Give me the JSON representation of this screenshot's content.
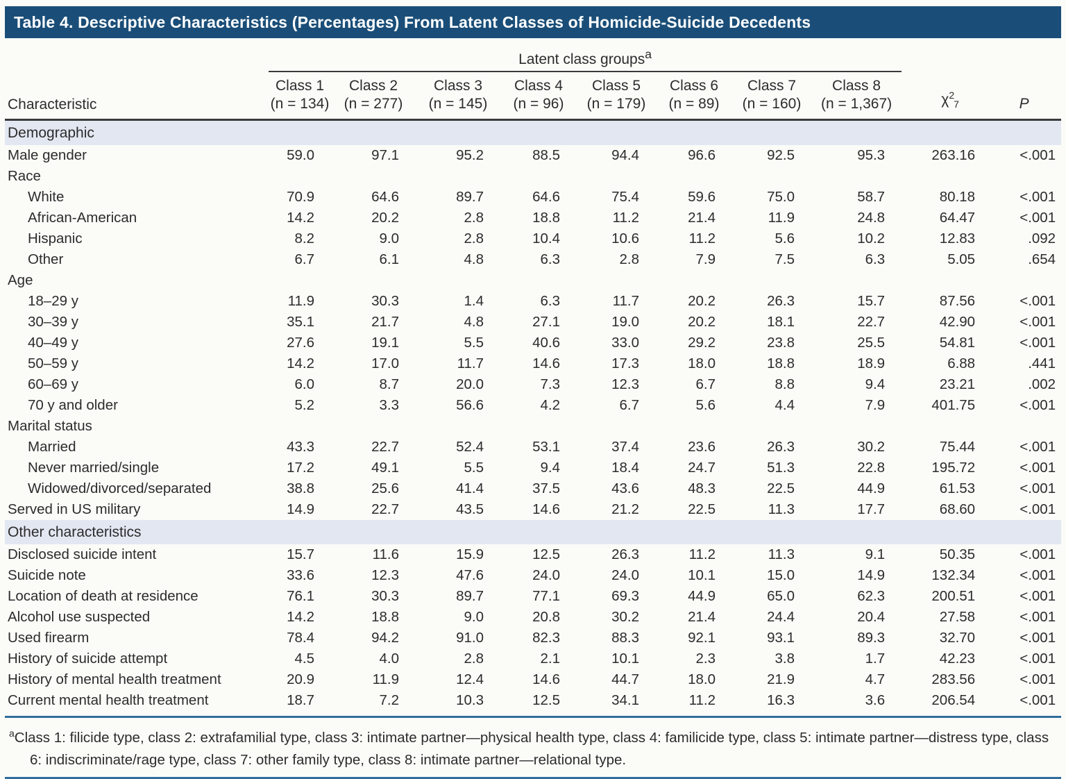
{
  "title": "Table 4. Descriptive Characteristics (Percentages) From Latent Classes of Homicide-Suicide Decedents",
  "colors": {
    "title_bar": "#1a4e78",
    "section_band": "#e3e7f2",
    "rule_blue": "#2f6d9d",
    "rule_dark": "#3a3a3a"
  },
  "table": {
    "group_header": {
      "label": "Latent class groups",
      "marker": "a"
    },
    "char_header": "Characteristic",
    "classes": [
      {
        "name": "Class 1",
        "n": "(n = 134)"
      },
      {
        "name": "Class 2",
        "n": "(n = 277)"
      },
      {
        "name": "Class 3",
        "n": "(n = 145)"
      },
      {
        "name": "Class 4",
        "n": "(n = 96)"
      },
      {
        "name": "Class 5",
        "n": "(n = 179)"
      },
      {
        "name": "Class 6",
        "n": "(n = 89)"
      },
      {
        "name": "Class 7",
        "n": "(n = 160)"
      },
      {
        "name": "Class 8",
        "n": "(n = 1,367)"
      }
    ],
    "chi_header": {
      "base": "χ",
      "sup": "2",
      "sub": "7"
    },
    "p_header": "P",
    "rows": [
      {
        "type": "section",
        "label": "Demographic"
      },
      {
        "type": "data",
        "label": "Male gender",
        "indent": 0,
        "values": [
          "59.0",
          "97.1",
          "95.2",
          "88.5",
          "94.4",
          "96.6",
          "92.5",
          "95.3"
        ],
        "chi": "263.16",
        "p": "<.001"
      },
      {
        "type": "data",
        "label": "Race",
        "indent": 0,
        "values": [
          "",
          "",
          "",
          "",
          "",
          "",
          "",
          ""
        ],
        "chi": "",
        "p": ""
      },
      {
        "type": "data",
        "label": "White",
        "indent": 1,
        "values": [
          "70.9",
          "64.6",
          "89.7",
          "64.6",
          "75.4",
          "59.6",
          "75.0",
          "58.7"
        ],
        "chi": "80.18",
        "p": "<.001"
      },
      {
        "type": "data",
        "label": "African-American",
        "indent": 1,
        "values": [
          "14.2",
          "20.2",
          "2.8",
          "18.8",
          "11.2",
          "21.4",
          "11.9",
          "24.8"
        ],
        "chi": "64.47",
        "p": "<.001"
      },
      {
        "type": "data",
        "label": "Hispanic",
        "indent": 1,
        "values": [
          "8.2",
          "9.0",
          "2.8",
          "10.4",
          "10.6",
          "11.2",
          "5.6",
          "10.2"
        ],
        "chi": "12.83",
        "p": ".092"
      },
      {
        "type": "data",
        "label": "Other",
        "indent": 1,
        "values": [
          "6.7",
          "6.1",
          "4.8",
          "6.3",
          "2.8",
          "7.9",
          "7.5",
          "6.3"
        ],
        "chi": "5.05",
        "p": ".654"
      },
      {
        "type": "data",
        "label": "Age",
        "indent": 0,
        "values": [
          "",
          "",
          "",
          "",
          "",
          "",
          "",
          ""
        ],
        "chi": "",
        "p": ""
      },
      {
        "type": "data",
        "label": "18–29 y",
        "indent": 1,
        "values": [
          "11.9",
          "30.3",
          "1.4",
          "6.3",
          "11.7",
          "20.2",
          "26.3",
          "15.7"
        ],
        "chi": "87.56",
        "p": "<.001"
      },
      {
        "type": "data",
        "label": "30–39 y",
        "indent": 1,
        "values": [
          "35.1",
          "21.7",
          "4.8",
          "27.1",
          "19.0",
          "20.2",
          "18.1",
          "22.7"
        ],
        "chi": "42.90",
        "p": "<.001"
      },
      {
        "type": "data",
        "label": "40–49 y",
        "indent": 1,
        "values": [
          "27.6",
          "19.1",
          "5.5",
          "40.6",
          "33.0",
          "29.2",
          "23.8",
          "25.5"
        ],
        "chi": "54.81",
        "p": "<.001"
      },
      {
        "type": "data",
        "label": "50–59 y",
        "indent": 1,
        "values": [
          "14.2",
          "17.0",
          "11.7",
          "14.6",
          "17.3",
          "18.0",
          "18.8",
          "18.9"
        ],
        "chi": "6.88",
        "p": ".441"
      },
      {
        "type": "data",
        "label": "60–69 y",
        "indent": 1,
        "values": [
          "6.0",
          "8.7",
          "20.0",
          "7.3",
          "12.3",
          "6.7",
          "8.8",
          "9.4"
        ],
        "chi": "23.21",
        "p": ".002"
      },
      {
        "type": "data",
        "label": "70 y and older",
        "indent": 1,
        "values": [
          "5.2",
          "3.3",
          "56.6",
          "4.2",
          "6.7",
          "5.6",
          "4.4",
          "7.9"
        ],
        "chi": "401.75",
        "p": "<.001"
      },
      {
        "type": "data",
        "label": "Marital status",
        "indent": 0,
        "values": [
          "",
          "",
          "",
          "",
          "",
          "",
          "",
          ""
        ],
        "chi": "",
        "p": ""
      },
      {
        "type": "data",
        "label": "Married",
        "indent": 1,
        "values": [
          "43.3",
          "22.7",
          "52.4",
          "53.1",
          "37.4",
          "23.6",
          "26.3",
          "30.2"
        ],
        "chi": "75.44",
        "p": "<.001"
      },
      {
        "type": "data",
        "label": "Never married/single",
        "indent": 1,
        "values": [
          "17.2",
          "49.1",
          "5.5",
          "9.4",
          "18.4",
          "24.7",
          "51.3",
          "22.8"
        ],
        "chi": "195.72",
        "p": "<.001"
      },
      {
        "type": "data",
        "label": "Widowed/divorced/separated",
        "indent": 1,
        "values": [
          "38.8",
          "25.6",
          "41.4",
          "37.5",
          "43.6",
          "48.3",
          "22.5",
          "44.9"
        ],
        "chi": "61.53",
        "p": "<.001"
      },
      {
        "type": "data",
        "label": "Served in US military",
        "indent": 0,
        "values": [
          "14.9",
          "22.7",
          "43.5",
          "14.6",
          "21.2",
          "22.5",
          "11.3",
          "17.7"
        ],
        "chi": "68.60",
        "p": "<.001"
      },
      {
        "type": "section",
        "label": "Other characteristics"
      },
      {
        "type": "data",
        "label": "Disclosed suicide intent",
        "indent": 0,
        "values": [
          "15.7",
          "11.6",
          "15.9",
          "12.5",
          "26.3",
          "11.2",
          "11.3",
          "9.1"
        ],
        "chi": "50.35",
        "p": "<.001"
      },
      {
        "type": "data",
        "label": "Suicide note",
        "indent": 0,
        "values": [
          "33.6",
          "12.3",
          "47.6",
          "24.0",
          "24.0",
          "10.1",
          "15.0",
          "14.9"
        ],
        "chi": "132.34",
        "p": "<.001"
      },
      {
        "type": "data",
        "label": "Location of death at residence",
        "indent": 0,
        "values": [
          "76.1",
          "30.3",
          "89.7",
          "77.1",
          "69.3",
          "44.9",
          "65.0",
          "62.3"
        ],
        "chi": "200.51",
        "p": "<.001"
      },
      {
        "type": "data",
        "label": "Alcohol use suspected",
        "indent": 0,
        "values": [
          "14.2",
          "18.8",
          "9.0",
          "20.8",
          "30.2",
          "21.4",
          "24.4",
          "20.4"
        ],
        "chi": "27.58",
        "p": "<.001"
      },
      {
        "type": "data",
        "label": "Used firearm",
        "indent": 0,
        "values": [
          "78.4",
          "94.2",
          "91.0",
          "82.3",
          "88.3",
          "92.1",
          "93.1",
          "89.3"
        ],
        "chi": "32.70",
        "p": "<.001"
      },
      {
        "type": "data",
        "label": "History of suicide attempt",
        "indent": 0,
        "values": [
          "4.5",
          "4.0",
          "2.8",
          "2.1",
          "10.1",
          "2.3",
          "3.8",
          "1.7"
        ],
        "chi": "42.23",
        "p": "<.001"
      },
      {
        "type": "data",
        "label": "History of mental health treatment",
        "indent": 0,
        "values": [
          "20.9",
          "11.9",
          "12.4",
          "14.6",
          "44.7",
          "18.0",
          "21.9",
          "4.7"
        ],
        "chi": "283.56",
        "p": "<.001"
      },
      {
        "type": "data",
        "label": "Current mental health treatment",
        "indent": 0,
        "values": [
          "18.7",
          "7.2",
          "10.3",
          "12.5",
          "34.1",
          "11.2",
          "16.3",
          "3.6"
        ],
        "chi": "206.54",
        "p": "<.001"
      }
    ]
  },
  "footnote": {
    "marker": "a",
    "text": "Class 1: filicide type, class 2: extrafamilial type, class 3: intimate partner—physical health type, class 4: familicide type, class 5: intimate partner—distress type, class 6: indiscriminate/rage type, class 7: other family type, class 8: intimate partner—relational type."
  }
}
